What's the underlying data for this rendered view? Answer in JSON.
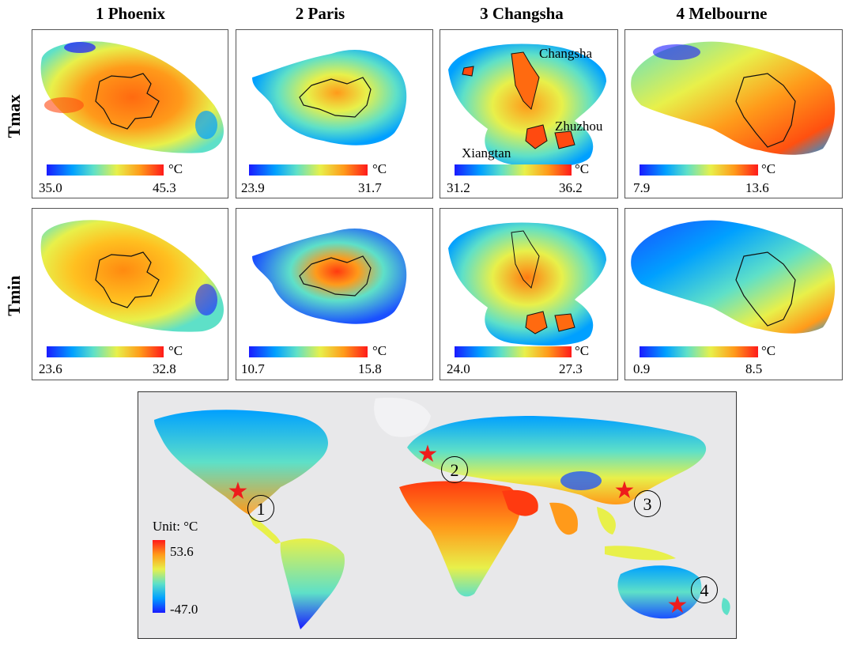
{
  "cities": [
    {
      "title": "1 Phoenix",
      "tmax": {
        "min": "35.0",
        "max": "45.3"
      },
      "tmin": {
        "min": "23.6",
        "max": "32.8"
      }
    },
    {
      "title": "2 Paris",
      "tmax": {
        "min": "23.9",
        "max": "31.7"
      },
      "tmin": {
        "min": "10.7",
        "max": "15.8"
      }
    },
    {
      "title": "3 Changsha",
      "tmax": {
        "min": "31.2",
        "max": "36.2"
      },
      "tmin": {
        "min": "24.0",
        "max": "27.3"
      }
    },
    {
      "title": "4 Melbourne",
      "tmax": {
        "min": "7.9",
        "max": "13.6"
      },
      "tmin": {
        "min": "0.9",
        "max": "8.5"
      }
    }
  ],
  "rows": {
    "tmax": "Tmax",
    "tmin": "Tmin"
  },
  "unit": "°C",
  "changsha_labels": {
    "changsha": "Changsha",
    "zhuzhou": "Zhuzhou",
    "xiangtan": "Xiangtan"
  },
  "world": {
    "legend_title": "Unit: °C",
    "legend_max": "53.6",
    "legend_min": "-47.0",
    "markers": [
      "1",
      "2",
      "3",
      "4"
    ]
  },
  "colors": {
    "hot": "#ff1a1a",
    "warm": "#ff9a1a",
    "mid": "#e8f04a",
    "cool": "#5ee0c8",
    "cold": "#00a0ff",
    "coldest": "#1a1aff",
    "star": "#ee1c1c"
  }
}
